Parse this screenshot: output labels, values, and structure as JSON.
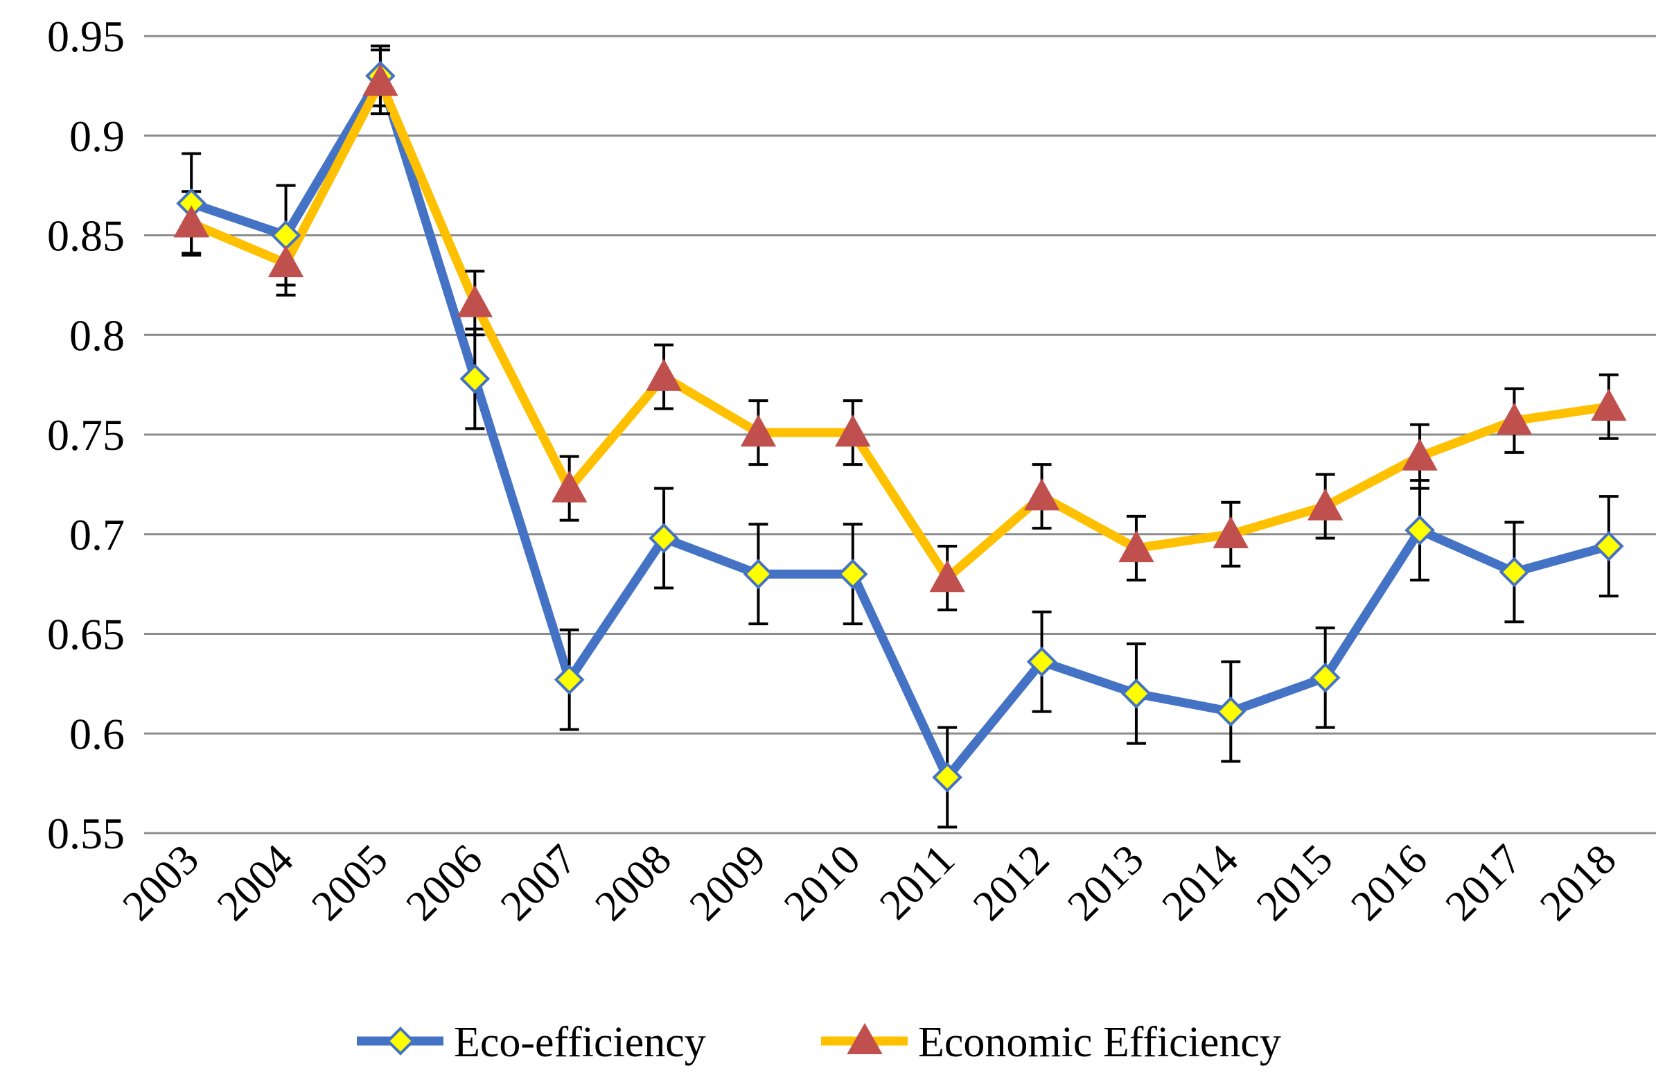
{
  "chart_data": {
    "type": "line",
    "title": "",
    "xlabel": "",
    "ylabel": "",
    "ylim": [
      0.55,
      0.95
    ],
    "y_ticks": [
      "0.55",
      "0.6",
      "0.65",
      "0.7",
      "0.75",
      "0.8",
      "0.85",
      "0.9",
      "0.95"
    ],
    "grid": true,
    "legend_position": "bottom",
    "categories": [
      "2003",
      "2004",
      "2005",
      "2006",
      "2007",
      "2008",
      "2009",
      "2010",
      "2011",
      "2012",
      "2013",
      "2014",
      "2015",
      "2016",
      "2017",
      "2018"
    ],
    "series": [
      {
        "name": "Eco-efficiency",
        "color": "#4472C4",
        "marker": "diamond",
        "marker_fill": "#FFFF00",
        "values": [
          0.866,
          0.85,
          0.93,
          0.778,
          0.627,
          0.698,
          0.68,
          0.68,
          0.578,
          0.636,
          0.62,
          0.611,
          0.628,
          0.702,
          0.681,
          0.694
        ],
        "error": [
          0.025,
          0.025,
          0.015,
          0.025,
          0.025,
          0.025,
          0.025,
          0.025,
          0.025,
          0.025,
          0.025,
          0.025,
          0.025,
          0.025,
          0.025,
          0.025
        ]
      },
      {
        "name": "Economic Efficiency",
        "color": "#FFC000",
        "marker": "triangle",
        "marker_fill": "#C0504D",
        "values": [
          0.856,
          0.836,
          0.927,
          0.816,
          0.723,
          0.779,
          0.751,
          0.751,
          0.678,
          0.719,
          0.693,
          0.7,
          0.714,
          0.739,
          0.757,
          0.764
        ],
        "error": [
          0.016,
          0.016,
          0.016,
          0.016,
          0.016,
          0.016,
          0.016,
          0.016,
          0.016,
          0.016,
          0.016,
          0.016,
          0.016,
          0.016,
          0.016,
          0.016
        ]
      }
    ]
  }
}
